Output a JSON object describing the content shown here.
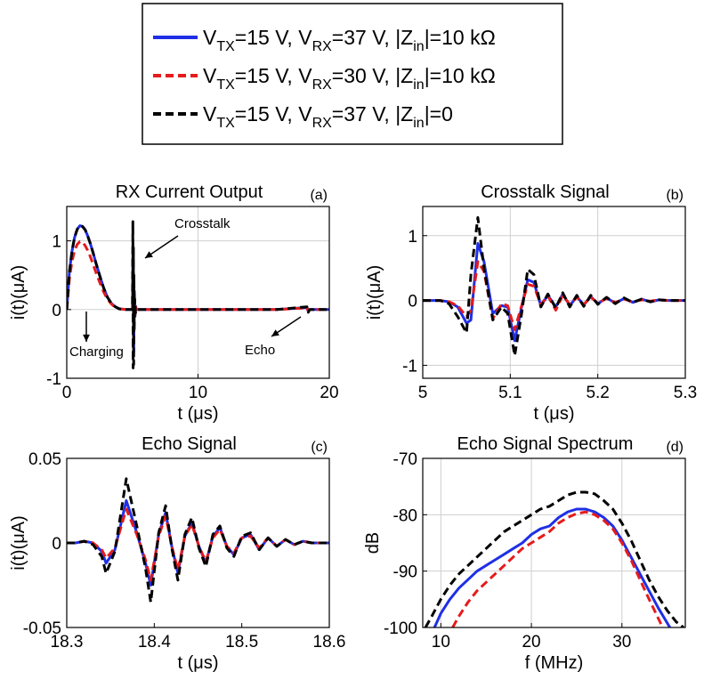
{
  "legend": {
    "entries": [
      {
        "series": "s1",
        "prefix": "V",
        "sub1": "TX",
        "mid1": "=15 V, V",
        "sub2": "RX",
        "mid2": "=37 V, |Z",
        "sub3": "in",
        "suffix": "|=10 kΩ",
        "color": "#1f2fe6",
        "dash": "solid"
      },
      {
        "series": "s2",
        "prefix": "V",
        "sub1": "TX",
        "mid1": "=15 V, V",
        "sub2": "RX",
        "mid2": "=30 V, |Z",
        "sub3": "in",
        "suffix": "|=10 kΩ",
        "color": "#e61b1b",
        "dash": "dashed"
      },
      {
        "series": "s3",
        "prefix": "V",
        "sub1": "TX",
        "mid1": "=15 V, V",
        "sub2": "RX",
        "mid2": "=37 V, |Z",
        "sub3": "in",
        "suffix": "|=0",
        "color": "#000000",
        "dash": "dashed"
      }
    ]
  },
  "chart_data": [
    {
      "id": "a",
      "type": "line",
      "title": "RX Current Output",
      "tag": "(a)",
      "xlabel": "t (μs)",
      "ylabel": "i(t)(μA)",
      "xlim": [
        0,
        20
      ],
      "ylim": [
        -1,
        1.5
      ],
      "xticks": [
        0,
        10,
        20
      ],
      "yticks": [
        -1,
        0,
        1
      ],
      "grid": true,
      "annotations": [
        {
          "text": "Crosstalk",
          "x": 8.6,
          "y": 1.02
        },
        {
          "text": "Charging",
          "x": 1.6,
          "y": -0.62
        },
        {
          "text": "Echo",
          "x": 14.9,
          "y": -0.61
        }
      ],
      "series": [
        {
          "name": "VTX=15 V, VRX=37 V, |Zin|=10 kΩ",
          "color": "#1f2fe6",
          "x": [
            0,
            0.2,
            0.4,
            0.6,
            0.8,
            1.0,
            1.2,
            1.4,
            1.6,
            1.8,
            2.0,
            2.2,
            2.5,
            2.8,
            3.1,
            3.4,
            3.7,
            4.0,
            4.5,
            5.0,
            5.05,
            5.1,
            5.15,
            5.2,
            5.25,
            5.3,
            5.6,
            8,
            12,
            16,
            18.3,
            18.4,
            18.5,
            20
          ],
          "y": [
            0,
            0.55,
            0.85,
            1.05,
            1.17,
            1.22,
            1.21,
            1.16,
            1.07,
            0.96,
            0.83,
            0.69,
            0.5,
            0.32,
            0.18,
            0.09,
            0.04,
            0.01,
            0,
            0,
            0.88,
            -0.62,
            0.27,
            -0.1,
            0.05,
            0,
            0,
            0,
            0,
            0,
            0.03,
            -0.03,
            0,
            0
          ]
        },
        {
          "name": "VTX=15 V, VRX=30 V, |Zin|=10 kΩ",
          "color": "#e61b1b",
          "x": [
            0,
            0.2,
            0.4,
            0.6,
            0.8,
            1.0,
            1.2,
            1.4,
            1.6,
            1.8,
            2.0,
            2.2,
            2.5,
            2.8,
            3.1,
            3.4,
            3.7,
            4.0,
            4.5,
            5.0,
            5.05,
            5.1,
            5.15,
            5.2,
            5.25,
            5.3,
            5.6,
            8,
            12,
            16,
            18.3,
            18.4,
            18.5,
            20
          ],
          "y": [
            0,
            0.45,
            0.7,
            0.86,
            0.95,
            0.99,
            0.98,
            0.93,
            0.86,
            0.77,
            0.66,
            0.55,
            0.4,
            0.26,
            0.15,
            0.08,
            0.03,
            0.01,
            0,
            0,
            0.6,
            -0.45,
            0.2,
            -0.08,
            0.04,
            0,
            0,
            0,
            0,
            0,
            0.025,
            -0.025,
            0,
            0
          ]
        },
        {
          "name": "VTX=15 V, VRX=37 V, |Zin|=0",
          "color": "#000000",
          "x": [
            0,
            0.2,
            0.4,
            0.6,
            0.8,
            1.0,
            1.2,
            1.4,
            1.6,
            1.8,
            2.0,
            2.2,
            2.5,
            2.8,
            3.1,
            3.4,
            3.7,
            4.0,
            4.5,
            5.0,
            5.04,
            5.06,
            5.08,
            5.1,
            5.12,
            5.14,
            5.18,
            5.24,
            5.3,
            5.6,
            8,
            12,
            16,
            18.3,
            18.4,
            18.5,
            20
          ],
          "y": [
            0,
            0.55,
            0.85,
            1.05,
            1.17,
            1.22,
            1.21,
            1.16,
            1.07,
            0.96,
            0.83,
            0.69,
            0.5,
            0.32,
            0.18,
            0.09,
            0.04,
            0.01,
            0,
            0,
            1.28,
            -0.85,
            0.9,
            -0.8,
            0.5,
            -0.3,
            0.15,
            -0.05,
            0,
            0,
            0,
            0,
            0,
            0.04,
            -0.04,
            0,
            0
          ]
        }
      ]
    },
    {
      "id": "b",
      "type": "line",
      "title": "Crosstalk Signal",
      "tag": "(b)",
      "xlabel": "t (μs)",
      "ylabel": "i(t)(μA)",
      "xlim": [
        5,
        5.3
      ],
      "ylim": [
        -1.2,
        1.45
      ],
      "xticks": [
        5,
        5.1,
        5.2,
        5.3
      ],
      "yticks": [
        -1,
        0,
        1
      ],
      "grid": true,
      "series": [
        {
          "name": "VTX=15 V, VRX=37 V, |Zin|=10 kΩ",
          "color": "#1f2fe6",
          "x": [
            5,
            5.01,
            5.02,
            5.03,
            5.04,
            5.05,
            5.055,
            5.063,
            5.07,
            5.08,
            5.09,
            5.097,
            5.105,
            5.113,
            5.12,
            5.127,
            5.135,
            5.143,
            5.152,
            5.16,
            5.168,
            5.176,
            5.184,
            5.192,
            5.2,
            5.21,
            5.22,
            5.23,
            5.24,
            5.25,
            5.26,
            5.27,
            5.28,
            5.3
          ],
          "y": [
            0,
            0,
            0,
            -0.02,
            -0.1,
            -0.35,
            -0.3,
            0.88,
            0.6,
            -0.2,
            -0.08,
            -0.1,
            -0.62,
            -0.1,
            0.32,
            0.28,
            -0.08,
            0.08,
            -0.1,
            0.1,
            -0.08,
            0.06,
            -0.07,
            0.06,
            -0.05,
            0.04,
            -0.04,
            0.03,
            -0.03,
            0.02,
            -0.02,
            0.01,
            0,
            0
          ]
        },
        {
          "name": "VTX=15 V, VRX=30 V, |Zin|=10 kΩ",
          "color": "#e61b1b",
          "x": [
            5,
            5.01,
            5.02,
            5.03,
            5.04,
            5.05,
            5.055,
            5.063,
            5.07,
            5.08,
            5.09,
            5.097,
            5.105,
            5.113,
            5.12,
            5.127,
            5.135,
            5.143,
            5.152,
            5.16,
            5.168,
            5.176,
            5.184,
            5.192,
            5.2,
            5.21,
            5.22,
            5.23,
            5.24,
            5.25,
            5.26,
            5.27,
            5.28,
            5.3
          ],
          "y": [
            0,
            0,
            0,
            -0.02,
            -0.08,
            -0.25,
            -0.15,
            0.6,
            0.45,
            -0.28,
            -0.05,
            -0.08,
            -0.45,
            -0.08,
            0.25,
            0.22,
            -0.06,
            0.07,
            -0.15,
            0.08,
            -0.06,
            0.05,
            -0.06,
            0.05,
            -0.04,
            0.03,
            -0.03,
            0.02,
            -0.02,
            0.01,
            -0.01,
            0.01,
            0,
            0
          ]
        },
        {
          "name": "VTX=15 V, VRX=37 V, |Zin|=0",
          "color": "#000000",
          "x": [
            5,
            5.01,
            5.02,
            5.03,
            5.04,
            5.05,
            5.055,
            5.063,
            5.07,
            5.08,
            5.09,
            5.097,
            5.105,
            5.113,
            5.12,
            5.127,
            5.135,
            5.143,
            5.152,
            5.16,
            5.168,
            5.176,
            5.184,
            5.192,
            5.2,
            5.21,
            5.22,
            5.23,
            5.24,
            5.25,
            5.26,
            5.27,
            5.28,
            5.3
          ],
          "y": [
            0,
            0,
            0,
            -0.05,
            -0.25,
            -0.5,
            0.4,
            1.28,
            0.5,
            -0.3,
            -0.1,
            -0.2,
            -0.85,
            -0.2,
            0.48,
            0.4,
            -0.1,
            0.1,
            -0.12,
            0.12,
            -0.1,
            0.08,
            -0.09,
            0.08,
            -0.06,
            0.05,
            -0.05,
            0.04,
            -0.03,
            0.02,
            -0.02,
            0.01,
            0,
            0
          ]
        }
      ]
    },
    {
      "id": "c",
      "type": "line",
      "title": "Echo Signal",
      "tag": "(c)",
      "xlabel": "t (μs)",
      "ylabel": "i(t)(μA)",
      "xlim": [
        18.3,
        18.6
      ],
      "ylim": [
        -0.05,
        0.05
      ],
      "xticks": [
        18.3,
        18.4,
        18.5,
        18.6
      ],
      "yticks": [
        -0.05,
        0,
        0.05
      ],
      "grid": false,
      "series": [
        {
          "name": "VTX=15 V, VRX=37 V, |Zin|=10 kΩ",
          "color": "#1f2fe6",
          "x": [
            18.3,
            18.31,
            18.32,
            18.33,
            18.34,
            18.345,
            18.355,
            18.368,
            18.38,
            18.39,
            18.396,
            18.405,
            18.413,
            18.42,
            18.427,
            18.435,
            18.443,
            18.451,
            18.459,
            18.467,
            18.475,
            18.483,
            18.491,
            18.5,
            18.51,
            18.52,
            18.53,
            18.54,
            18.55,
            18.56,
            18.57,
            18.58,
            18.6
          ],
          "y": [
            0,
            0,
            0.001,
            0,
            -0.005,
            -0.012,
            -0.004,
            0.025,
            0.006,
            -0.012,
            -0.025,
            0.005,
            0.018,
            -0.002,
            -0.018,
            0.004,
            0.012,
            -0.002,
            -0.012,
            0.004,
            0.009,
            -0.002,
            -0.007,
            0.003,
            0.005,
            -0.004,
            0.003,
            -0.002,
            0.002,
            -0.001,
            0.001,
            0,
            0
          ]
        },
        {
          "name": "VTX=15 V, VRX=30 V, |Zin|=10 kΩ",
          "color": "#e61b1b",
          "x": [
            18.3,
            18.31,
            18.32,
            18.33,
            18.34,
            18.345,
            18.355,
            18.368,
            18.38,
            18.39,
            18.396,
            18.405,
            18.413,
            18.42,
            18.427,
            18.435,
            18.443,
            18.451,
            18.459,
            18.467,
            18.475,
            18.483,
            18.491,
            18.5,
            18.51,
            18.52,
            18.53,
            18.54,
            18.55,
            18.56,
            18.57,
            18.58,
            18.6
          ],
          "y": [
            0,
            0,
            0.001,
            0,
            -0.004,
            -0.009,
            -0.003,
            0.02,
            0.005,
            -0.01,
            -0.022,
            0.004,
            0.016,
            -0.002,
            -0.016,
            0.004,
            0.011,
            -0.002,
            -0.011,
            0.003,
            0.008,
            -0.002,
            -0.006,
            0.003,
            0.004,
            -0.003,
            0.003,
            -0.002,
            0.002,
            -0.001,
            0.001,
            0,
            0
          ]
        },
        {
          "name": "VTX=15 V, VRX=37 V, |Zin|=0",
          "color": "#000000",
          "x": [
            18.3,
            18.31,
            18.32,
            18.33,
            18.34,
            18.345,
            18.355,
            18.368,
            18.38,
            18.39,
            18.396,
            18.405,
            18.413,
            18.42,
            18.427,
            18.435,
            18.443,
            18.451,
            18.459,
            18.467,
            18.475,
            18.483,
            18.491,
            18.5,
            18.51,
            18.52,
            18.53,
            18.54,
            18.55,
            18.56,
            18.57,
            18.58,
            18.6
          ],
          "y": [
            0,
            0,
            0.001,
            -0.001,
            -0.008,
            -0.018,
            -0.005,
            0.038,
            0.01,
            -0.015,
            -0.035,
            0.006,
            0.022,
            -0.003,
            -0.022,
            0.005,
            0.015,
            -0.003,
            -0.014,
            0.005,
            0.01,
            -0.003,
            -0.008,
            0.004,
            0.006,
            -0.004,
            0.003,
            -0.002,
            0.002,
            -0.001,
            0.001,
            0,
            0
          ]
        }
      ]
    },
    {
      "id": "d",
      "type": "line",
      "title": "Echo Signal Spectrum",
      "tag": "(d)",
      "xlabel": "f (MHz)",
      "ylabel": "dB",
      "xlim": [
        8,
        37
      ],
      "ylim": [
        -100,
        -70
      ],
      "xticks": [
        10,
        20,
        30
      ],
      "yticks": [
        -100,
        -90,
        -80,
        -70
      ],
      "grid": true,
      "series": [
        {
          "name": "VTX=15 V, VRX=37 V, |Zin|=10 kΩ",
          "color": "#1f2fe6",
          "x": [
            9.3,
            10,
            11,
            12,
            13,
            14,
            15,
            16,
            17,
            18,
            19,
            20,
            21,
            22,
            23,
            24,
            25,
            26,
            27,
            28,
            29,
            30,
            31,
            32,
            33,
            34,
            35.3
          ],
          "y": [
            -100,
            -97.5,
            -95,
            -93,
            -91.5,
            -90,
            -89,
            -88,
            -87,
            -86,
            -85,
            -83.5,
            -82.5,
            -82,
            -80.5,
            -79.5,
            -79,
            -79,
            -79.5,
            -80.5,
            -82,
            -84.5,
            -87.5,
            -90.5,
            -93.5,
            -96.5,
            -100
          ]
        },
        {
          "name": "VTX=15 V, VRX=30 V, |Zin|=10 kΩ",
          "color": "#e61b1b",
          "x": [
            11.3,
            12,
            13,
            14,
            15,
            16,
            17,
            18,
            19,
            20,
            21,
            22,
            23,
            24,
            25,
            26,
            27,
            28,
            29,
            30,
            31,
            32,
            33,
            34.5
          ],
          "y": [
            -100,
            -98,
            -95.5,
            -93.5,
            -92,
            -90.5,
            -89,
            -87.5,
            -86,
            -85,
            -84,
            -83,
            -81.5,
            -80.5,
            -79.8,
            -79.5,
            -80,
            -81,
            -82.5,
            -85,
            -88,
            -91.5,
            -95,
            -100
          ]
        },
        {
          "name": "VTX=15 V, VRX=37 V, |Zin|=0",
          "color": "#000000",
          "x": [
            8.3,
            9,
            10,
            11,
            12,
            13,
            14,
            15,
            16,
            17,
            18,
            19,
            20,
            21,
            22,
            23,
            24,
            25,
            26,
            27,
            28,
            29,
            30,
            31,
            32,
            33,
            34,
            35,
            36,
            36.8
          ],
          "y": [
            -100,
            -98,
            -95,
            -92.5,
            -90.5,
            -89,
            -87.5,
            -86,
            -84.5,
            -83,
            -82,
            -81,
            -80,
            -79,
            -78.5,
            -77.5,
            -76.5,
            -76,
            -76,
            -76.3,
            -77.5,
            -79,
            -81.5,
            -84.5,
            -88,
            -91.5,
            -94.5,
            -97,
            -99,
            -100
          ]
        }
      ]
    }
  ]
}
